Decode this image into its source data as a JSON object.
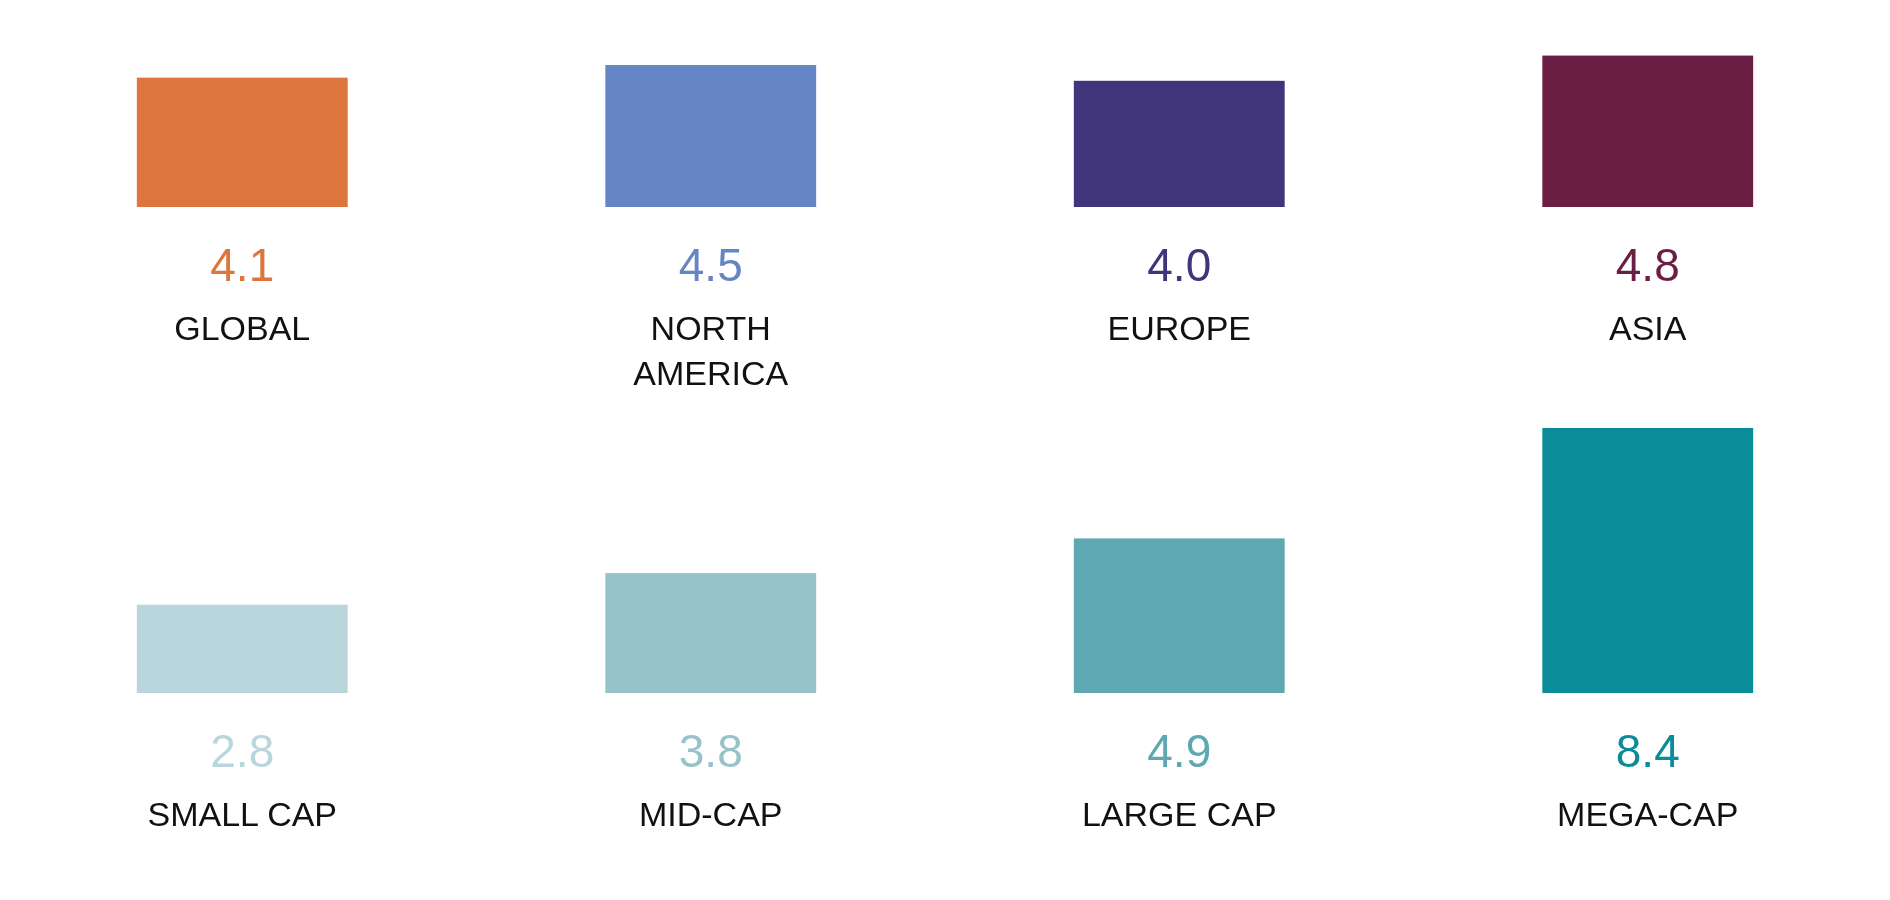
{
  "chart_data": [
    {
      "type": "bar",
      "categories": [
        "GLOBAL",
        "NORTH AMERICA",
        "EUROPE",
        "ASIA"
      ],
      "values": [
        4.1,
        4.5,
        4.0,
        4.8
      ],
      "value_labels": [
        "4.1",
        "4.5",
        "4.0",
        "4.8"
      ],
      "colors": [
        "#dc763c",
        "#6685c4",
        "#40347a",
        "#6b1e44"
      ]
    },
    {
      "type": "bar",
      "categories": [
        "SMALL CAP",
        "MID-CAP",
        "LARGE CAP",
        "MEGA-CAP"
      ],
      "values": [
        2.8,
        3.8,
        4.9,
        8.4
      ],
      "value_labels": [
        "2.8",
        "3.8",
        "4.9",
        "8.4"
      ],
      "colors": [
        "#b9d6dd",
        "#97c2c9",
        "#5ea8b2",
        "#0a8c99"
      ]
    }
  ]
}
